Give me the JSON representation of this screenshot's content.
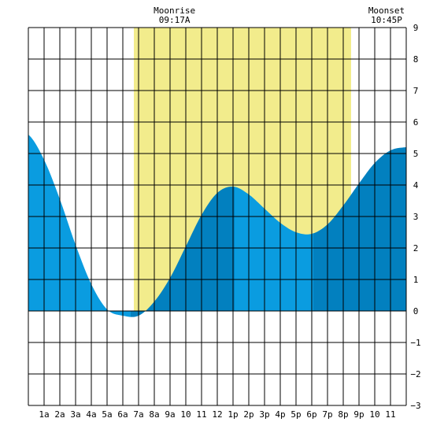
{
  "chart_data": {
    "type": "area",
    "annotations": [
      {
        "label": "Moonrise",
        "time": "09:17A",
        "hour": 9.28
      },
      {
        "label": "Moonset",
        "time": "10:45P",
        "hour": 22.75
      }
    ],
    "daylight": {
      "start_hour": 6.7,
      "end_hour": 20.5
    },
    "x_ticks": [
      {
        "hour": 1,
        "label": "1a"
      },
      {
        "hour": 2,
        "label": "2a"
      },
      {
        "hour": 3,
        "label": "3a"
      },
      {
        "hour": 4,
        "label": "4a"
      },
      {
        "hour": 5,
        "label": "5a"
      },
      {
        "hour": 6,
        "label": "6a"
      },
      {
        "hour": 7,
        "label": "7a"
      },
      {
        "hour": 8,
        "label": "8a"
      },
      {
        "hour": 9,
        "label": "9a"
      },
      {
        "hour": 10,
        "label": "10"
      },
      {
        "hour": 11,
        "label": "11"
      },
      {
        "hour": 12,
        "label": "12"
      },
      {
        "hour": 13,
        "label": "1p"
      },
      {
        "hour": 14,
        "label": "2p"
      },
      {
        "hour": 15,
        "label": "3p"
      },
      {
        "hour": 16,
        "label": "4p"
      },
      {
        "hour": 17,
        "label": "5p"
      },
      {
        "hour": 18,
        "label": "6p"
      },
      {
        "hour": 19,
        "label": "7p"
      },
      {
        "hour": 20,
        "label": "8p"
      },
      {
        "hour": 21,
        "label": "9p"
      },
      {
        "hour": 22,
        "label": "10"
      },
      {
        "hour": 23,
        "label": "11"
      }
    ],
    "y_ticks": [
      9,
      8,
      7,
      6,
      5,
      4,
      3,
      2,
      1,
      0,
      -1,
      -2,
      -3
    ],
    "xlim": [
      0,
      24
    ],
    "ylim": [
      -3,
      9
    ],
    "grid": true,
    "extrema": [
      {
        "hour": 6.5,
        "value": -0.25,
        "kind": "low"
      },
      {
        "hour": 13.1,
        "value": 3.95,
        "kind": "high"
      },
      {
        "hour": 18.1,
        "value": 2.45,
        "kind": "low"
      },
      {
        "hour": 24.0,
        "value": 5.2,
        "kind": "high"
      }
    ],
    "series": [
      {
        "x": [
          0,
          1,
          2,
          3,
          4,
          5,
          6,
          7,
          8,
          9,
          10,
          11,
          12,
          13,
          14,
          15,
          16,
          17,
          18,
          19,
          20,
          21,
          22,
          23,
          24
        ],
        "values": [
          5.6,
          4.8,
          3.55,
          2.1,
          0.85,
          0.05,
          -0.15,
          -0.15,
          0.3,
          1.05,
          2.05,
          3.05,
          3.75,
          3.95,
          3.7,
          3.25,
          2.8,
          2.5,
          2.45,
          2.75,
          3.35,
          4.05,
          4.7,
          5.1,
          5.2
        ]
      }
    ],
    "colors": {
      "daylight": "#f2ec8c",
      "tide_light": "#0a9ce0",
      "tide_dark": "#0280bf",
      "grid": "#000000"
    }
  }
}
